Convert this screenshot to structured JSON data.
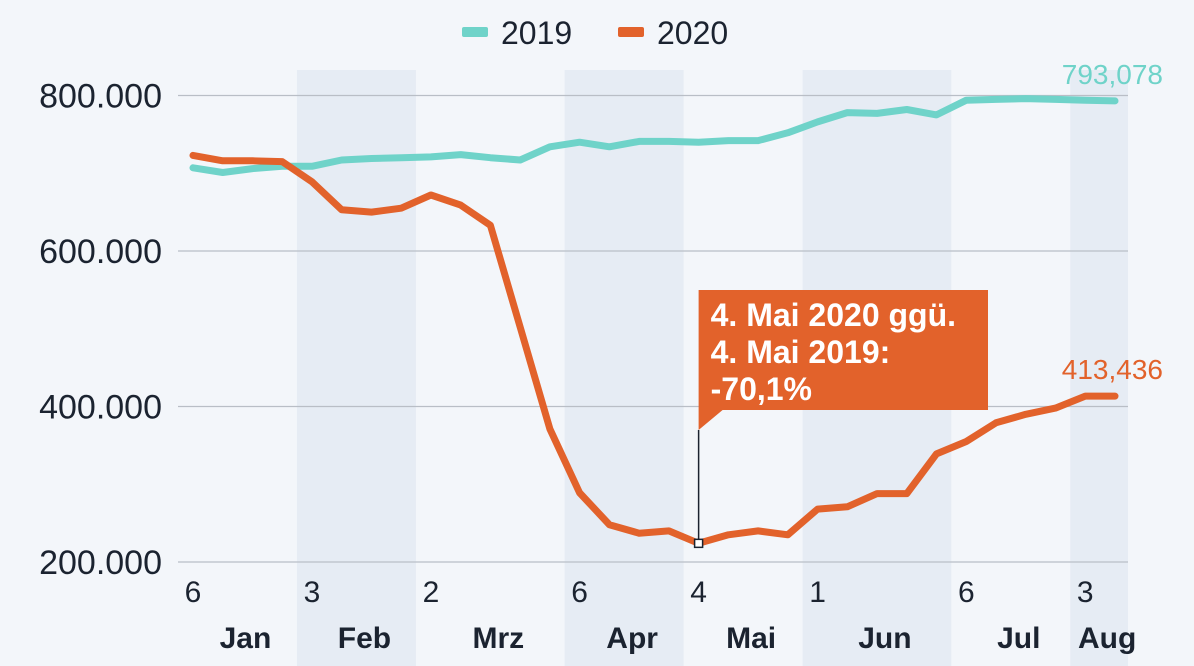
{
  "colors": {
    "series_2019": "#6fd3c9",
    "series_2020": "#e2622b",
    "band": "#e6ecf4",
    "grid": "#b9bec6",
    "callout": "#e2622b"
  },
  "legend": [
    {
      "name": "2019",
      "color": "#6fd3c9"
    },
    {
      "name": "2020",
      "color": "#e2622b"
    }
  ],
  "chart_data": {
    "type": "line",
    "title": "",
    "xlabel": "",
    "ylabel": "",
    "x_tick_labels": [
      "6",
      "3",
      "2",
      "6",
      "4",
      "1",
      "6",
      "3"
    ],
    "x_tick_index": [
      0,
      4,
      8,
      13,
      17,
      21,
      26,
      30
    ],
    "months": [
      "Jan",
      "Feb",
      "Mrz",
      "Apr",
      "Mai",
      "Jun",
      "Jul",
      "Aug"
    ],
    "y_tick_labels": [
      "200.000",
      "400.000",
      "600.000",
      "800.000"
    ],
    "y_ticks": [
      200000,
      400000,
      600000,
      800000
    ],
    "ylim": [
      200000,
      830000
    ],
    "x_count": 32,
    "series": [
      {
        "name": "2019",
        "color": "#6fd3c9",
        "values": [
          707000,
          701000,
          706000,
          709000,
          709000,
          717000,
          719000,
          720000,
          721000,
          724000,
          720000,
          717000,
          734000,
          740000,
          734000,
          741000,
          741000,
          740000,
          742000,
          742000,
          752000,
          766000,
          778000,
          777000,
          782000,
          775000,
          794000,
          795000,
          796000,
          795000,
          794000,
          793078
        ],
        "end_label": "793,078"
      },
      {
        "name": "2020",
        "color": "#e2622b",
        "values": [
          723000,
          716000,
          716000,
          715000,
          689000,
          653000,
          650000,
          655000,
          672000,
          659000,
          633000,
          502000,
          371000,
          289000,
          248000,
          237000,
          240000,
          224000,
          235000,
          240000,
          235000,
          268000,
          271000,
          288000,
          288000,
          339000,
          355000,
          379000,
          390000,
          398000,
          413436,
          413436
        ],
        "end_label": "413,436"
      }
    ],
    "annotation": {
      "index": 17,
      "lines": [
        "4. Mai 2020 ggü.",
        "4. Mai 2019:",
        "-70,1%"
      ]
    }
  }
}
